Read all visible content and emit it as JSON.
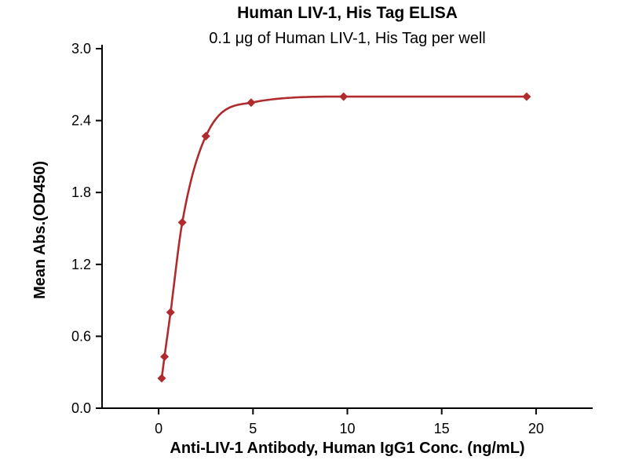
{
  "chart_data": {
    "type": "scatter",
    "title": "Human LIV-1, His Tag ELISA",
    "subtitle": "0.1 μg of Human LIV-1, His Tag per well",
    "xlabel": "Anti-LIV-1 Antibody, Human IgG1 Conc. (ng/mL)",
    "ylabel": "Mean Abs.(OD450)",
    "x": [
      0.16,
      0.31,
      0.63,
      1.25,
      2.5,
      4.9,
      9.8,
      19.5
    ],
    "y": [
      0.25,
      0.43,
      0.8,
      1.55,
      2.27,
      2.55,
      2.6,
      2.6
    ],
    "xlim": [
      -3,
      23
    ],
    "ylim": [
      0,
      3.0
    ],
    "x_ticks": [
      "0",
      "5",
      "10",
      "15",
      "20"
    ],
    "y_ticks": [
      "0.0",
      "0.6",
      "1.2",
      "1.8",
      "2.4",
      "3.0"
    ],
    "line_color": "#af2b2d",
    "axis_color": "#000000",
    "marker": "diamond",
    "grid": false,
    "legend": null
  }
}
